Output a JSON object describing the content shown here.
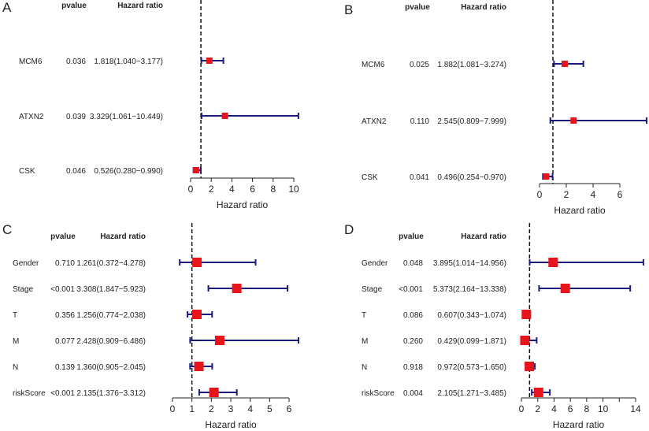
{
  "chart_data": [
    {
      "type": "forest",
      "panel_label": "A",
      "column_headers": {
        "pvalue": "pvalue",
        "hazard_ratio": "Hazard ratio"
      },
      "xlabel": "Hazard ratio",
      "xlim": [
        0,
        10
      ],
      "xticks": [
        "0",
        "2",
        "4",
        "6",
        "8",
        "10"
      ],
      "reference_line": 1,
      "rows": [
        {
          "name": "MCM6",
          "pvalue": "0.036",
          "hr_text": "1.818(1.040−3.177)",
          "hr": 1.818,
          "lower": 1.04,
          "upper": 3.177
        },
        {
          "name": "ATXN2",
          "pvalue": "0.039",
          "hr_text": "3.329(1.061−10.449)",
          "hr": 3.329,
          "lower": 1.061,
          "upper": 10.449
        },
        {
          "name": "CSK",
          "pvalue": "0.046",
          "hr_text": "0.526(0.280−0.990)",
          "hr": 0.526,
          "lower": 0.28,
          "upper": 0.99
        }
      ]
    },
    {
      "type": "forest",
      "panel_label": "B",
      "column_headers": {
        "pvalue": "pvalue",
        "hazard_ratio": "Hazard ratio"
      },
      "xlabel": "Hazard ratio",
      "xlim": [
        0,
        6
      ],
      "xticks": [
        "0",
        "2",
        "4",
        "6"
      ],
      "reference_line": 1,
      "rows": [
        {
          "name": "MCM6",
          "pvalue": "0.025",
          "hr_text": "1.882(1.081−3.274)",
          "hr": 1.882,
          "lower": 1.081,
          "upper": 3.274
        },
        {
          "name": "ATXN2",
          "pvalue": "0.110",
          "hr_text": "2.545(0.809−7.999)",
          "hr": 2.545,
          "lower": 0.809,
          "upper": 7.999
        },
        {
          "name": "CSK",
          "pvalue": "0.041",
          "hr_text": "0.496(0.254−0.970)",
          "hr": 0.496,
          "lower": 0.254,
          "upper": 0.97
        }
      ]
    },
    {
      "type": "forest",
      "panel_label": "C",
      "column_headers": {
        "pvalue": "pvalue",
        "hazard_ratio": "Hazard ratio"
      },
      "xlabel": "Hazard ratio",
      "xlim": [
        0,
        6
      ],
      "xticks": [
        "0",
        "1",
        "2",
        "3",
        "4",
        "5",
        "6"
      ],
      "reference_line": 1,
      "rows": [
        {
          "name": "Gender",
          "pvalue": "0.710",
          "hr_text": "1.261(0.372−4.278)",
          "hr": 1.261,
          "lower": 0.372,
          "upper": 4.278
        },
        {
          "name": "Stage",
          "pvalue": "<0.001",
          "hr_text": "3.308(1.847−5.923)",
          "hr": 3.308,
          "lower": 1.847,
          "upper": 5.923
        },
        {
          "name": "T",
          "pvalue": "0.356",
          "hr_text": "1.256(0.774−2.038)",
          "hr": 1.256,
          "lower": 0.774,
          "upper": 2.038
        },
        {
          "name": "M",
          "pvalue": "0.077",
          "hr_text": "2.428(0.909−6.486)",
          "hr": 2.428,
          "lower": 0.909,
          "upper": 6.486
        },
        {
          "name": "N",
          "pvalue": "0.139",
          "hr_text": "1.360(0.905−2.045)",
          "hr": 1.36,
          "lower": 0.905,
          "upper": 2.045
        },
        {
          "name": "riskScore",
          "pvalue": "<0.001",
          "hr_text": "2.135(1.376−3.312)",
          "hr": 2.135,
          "lower": 1.376,
          "upper": 3.312
        }
      ]
    },
    {
      "type": "forest",
      "panel_label": "D",
      "column_headers": {
        "pvalue": "pvalue",
        "hazard_ratio": "Hazard ratio"
      },
      "xlabel": "Hazard ratio",
      "xlim": [
        0,
        14
      ],
      "xticks": [
        "0",
        "2",
        "4",
        "6",
        "8",
        "10",
        "",
        "14"
      ],
      "reference_line": 1,
      "rows": [
        {
          "name": "Gender",
          "pvalue": "0.048",
          "hr_text": "3.895(1.014−14.956)",
          "hr": 3.895,
          "lower": 1.014,
          "upper": 14.956
        },
        {
          "name": "Stage",
          "pvalue": "<0.001",
          "hr_text": "5.373(2.164−13.338)",
          "hr": 5.373,
          "lower": 2.164,
          "upper": 13.338
        },
        {
          "name": "T",
          "pvalue": "0.086",
          "hr_text": "0.607(0.343−1.074)",
          "hr": 0.607,
          "lower": 0.343,
          "upper": 1.074
        },
        {
          "name": "M",
          "pvalue": "0.260",
          "hr_text": "0.429(0.099−1.871)",
          "hr": 0.429,
          "lower": 0.099,
          "upper": 1.871
        },
        {
          "name": "N",
          "pvalue": "0.918",
          "hr_text": "0.972(0.573−1.650)",
          "hr": 0.972,
          "lower": 0.573,
          "upper": 1.65
        },
        {
          "name": "riskScore",
          "pvalue": "0.004",
          "hr_text": "2.105(1.271−3.485)",
          "hr": 2.105,
          "lower": 1.271,
          "upper": 3.485
        }
      ]
    }
  ],
  "colors": {
    "box": "#e8141c",
    "whisker": "#1a1a80",
    "axis": "#222222"
  }
}
